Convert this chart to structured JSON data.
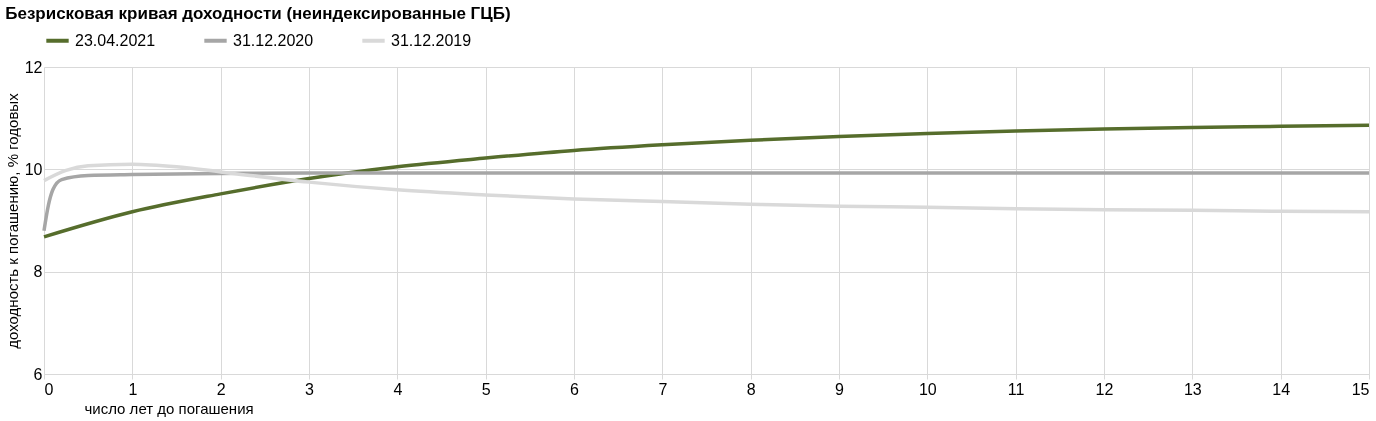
{
  "chart_data": {
    "type": "line",
    "title": "Безрисковая кривая доходности (неиндексированные ГЦБ)",
    "xlabel": "число лет до погашения",
    "ylabel": "доходность к погашению, % годовых",
    "xlim": [
      0,
      15
    ],
    "xticks": [
      0,
      1,
      2,
      3,
      4,
      5,
      6,
      7,
      8,
      9,
      10,
      11,
      12,
      13,
      14,
      15
    ],
    "ylim": [
      6,
      12
    ],
    "yticks": [
      6,
      8,
      10,
      12
    ],
    "grid": true,
    "legend": "top",
    "marker": "none",
    "line_style": "solid",
    "series": [
      {
        "name": "23.04.2021",
        "color": "#566d2c",
        "x": [
          0,
          1,
          2,
          3,
          4,
          5,
          6,
          7,
          8,
          9,
          10,
          11,
          12,
          13,
          14,
          15
        ],
        "values": [
          8.68,
          9.17,
          9.52,
          9.82,
          10.05,
          10.22,
          10.37,
          10.48,
          10.57,
          10.64,
          10.7,
          10.75,
          10.79,
          10.82,
          10.84,
          10.86
        ]
      },
      {
        "name": "31.12.2020",
        "color": "#a6a6a6",
        "x": [
          0,
          0.05,
          0.1,
          0.2,
          0.5,
          1,
          2,
          3,
          5,
          8,
          11,
          15
        ],
        "values": [
          8.8,
          9.3,
          9.6,
          9.8,
          9.88,
          9.9,
          9.92,
          9.93,
          9.93,
          9.93,
          9.93,
          9.93
        ]
      },
      {
        "name": "31.12.2019",
        "color": "#d9d9d9",
        "x": [
          0,
          0.25,
          0.5,
          1,
          1.5,
          2,
          3,
          4,
          5,
          6,
          7,
          8,
          9,
          10,
          11,
          12,
          13,
          14,
          15
        ],
        "values": [
          9.78,
          9.98,
          10.07,
          10.1,
          10.05,
          9.95,
          9.75,
          9.6,
          9.5,
          9.42,
          9.37,
          9.32,
          9.28,
          9.26,
          9.23,
          9.21,
          9.2,
          9.18,
          9.17
        ]
      }
    ]
  }
}
